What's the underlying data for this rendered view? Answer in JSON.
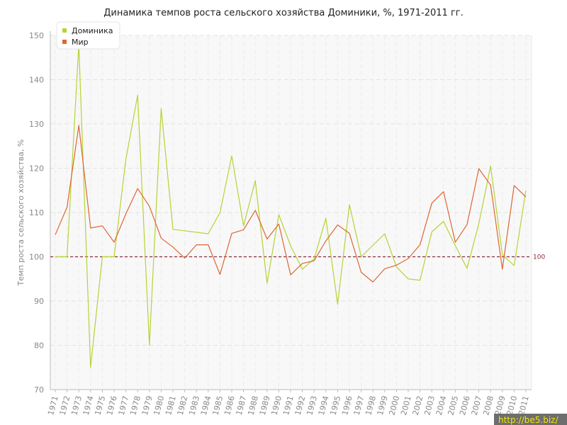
{
  "chart_data": {
    "type": "line",
    "title": "Динамика темпов роста сельского хозяйства Доминики, %, 1971-2011 гг.",
    "ylabel": "Темп роста сельского хозяйства, %",
    "xlabel": "",
    "ylim": [
      70,
      150
    ],
    "yticks": [
      "70",
      "80",
      "90",
      "100",
      "110",
      "120",
      "130",
      "140",
      "150"
    ],
    "grid": true,
    "legend_position": "top-left",
    "reference_line": {
      "value": 100,
      "label": "100",
      "color": "#8b2c3a"
    },
    "categories": [
      "1971",
      "1972",
      "1973",
      "1974",
      "1975",
      "1976",
      "1977",
      "1978",
      "1979",
      "1980",
      "1981",
      "1982",
      "1983",
      "1984",
      "1985",
      "1986",
      "1987",
      "1988",
      "1989",
      "1990",
      "1991",
      "1992",
      "1993",
      "1994",
      "1995",
      "1996",
      "1997",
      "1998",
      "1999",
      "2000",
      "2001",
      "2002",
      "2003",
      "2004",
      "2005",
      "2006",
      "2007",
      "2008",
      "2009",
      "2010",
      "2011"
    ],
    "series": [
      {
        "name": "Доминика",
        "color": "#b5d334",
        "values": [
          100,
          100,
          148,
          75,
          100,
          100,
          122,
          136.5,
          80,
          133.5,
          106.2,
          null,
          null,
          105.2,
          110,
          122.8,
          107,
          117.2,
          94,
          109.5,
          102.5,
          97.2,
          99.5,
          108.7,
          89.3,
          111.8,
          100,
          null,
          105.2,
          97.7,
          95,
          94.7,
          105.6,
          108,
          102.5,
          97.4,
          107.5,
          120.5,
          100.5,
          98,
          115
        ]
      },
      {
        "name": "Мир",
        "color": "#dd6633",
        "values": [
          105,
          111.2,
          129.7,
          106.5,
          107,
          103.3,
          109.7,
          115.4,
          111.4,
          104.2,
          102.2,
          99.7,
          102.7,
          102.7,
          96,
          105.3,
          106.1,
          110.5,
          104,
          107.4,
          95.9,
          98.5,
          99.1,
          103.6,
          107.2,
          105.3,
          96.5,
          94.3,
          97.3,
          98.1,
          99.6,
          102.7,
          112.1,
          114.7,
          103.3,
          107.3,
          119.9,
          116.2,
          97.2,
          116.1,
          113.5
        ]
      }
    ]
  },
  "watermark": "http://be5.biz/"
}
